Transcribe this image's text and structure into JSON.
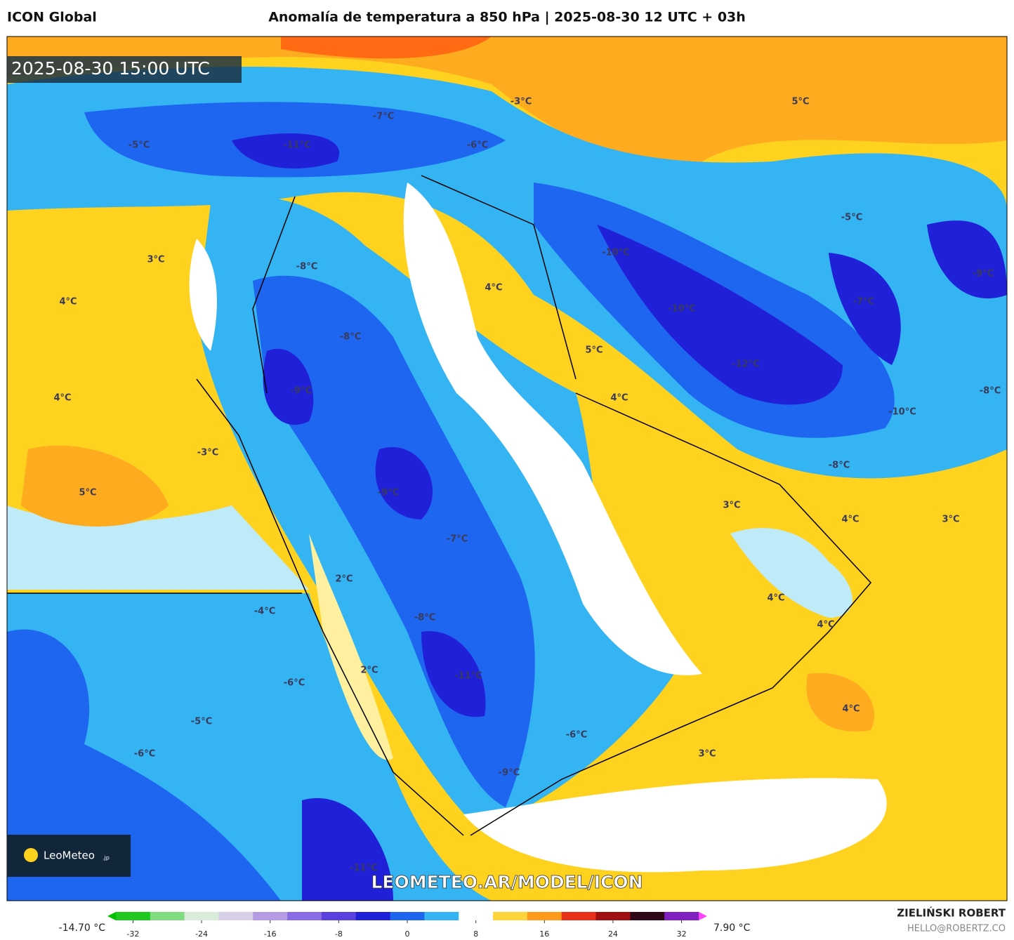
{
  "header": {
    "model": "ICON Global",
    "title": "Anomalía de temperatura a 850 hPa | 2025-08-30 12 UTC + 03h"
  },
  "map": {
    "timestamp": "2025-08-30 15:00 UTC",
    "watermark": "LEOMETEO.AR/MODEL/ICON",
    "logo": "LeoMeteo",
    "logo_suffix": ".jp",
    "labels": [
      "-7°C",
      "-3°C",
      "5°C",
      "-5°C",
      "-11°C",
      "-6°C",
      "-5°C",
      "-10°C",
      "3°C",
      "-8°C",
      "-9°C",
      "4°C",
      "4°C",
      "-7°C",
      "-10°C",
      "-8°C",
      "5°C",
      "-12°C",
      "-9°C",
      "-8°C",
      "4°C",
      "4°C",
      "-10°C",
      "-3°C",
      "-8°C",
      "5°C",
      "-9°C",
      "3°C",
      "4°C",
      "3°C",
      "-7°C",
      "2°C",
      "4°C",
      "-4°C",
      "-8°C",
      "4°C",
      "2°C",
      "-11°C",
      "-6°C",
      "4°C",
      "-5°C",
      "-6°C",
      "-6°C",
      "3°C",
      "-9°C",
      "-11°C"
    ]
  },
  "colorbar": {
    "min_label": "-14.70 °C",
    "max_label": "7.90 °C",
    "lim": [
      -34,
      34
    ],
    "ticks": [
      -32,
      -24,
      -16,
      -8,
      0,
      8,
      16,
      24,
      32
    ],
    "colors": [
      "#1ec81e",
      "#7fdc7f",
      "#d9ecd9",
      "#d6cfe6",
      "#b49be3",
      "#8a6be6",
      "#5a40e0",
      "#2020d8",
      "#1e66f0",
      "#34b4f2",
      "#ffffff",
      "#ffd43a",
      "#ff9a1a",
      "#e8301a",
      "#a01010",
      "#300818",
      "#8020c0"
    ],
    "under_color": "#00c000",
    "over_color": "#ff40ff"
  },
  "footer": {
    "author": "ZIELIŃSKI ROBERT",
    "email": "HELLO@ROBERTZ.CO"
  }
}
